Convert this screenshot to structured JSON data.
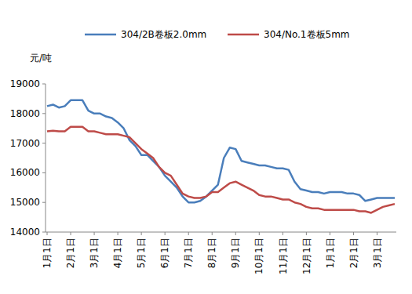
{
  "chart_data": {
    "type": "line",
    "y_label": "元/吨",
    "categories": [
      "1月1日",
      null,
      null,
      null,
      "2月1日",
      null,
      null,
      null,
      "3月1日",
      null,
      null,
      null,
      "4月1日",
      null,
      null,
      null,
      "5月1日",
      null,
      null,
      null,
      "6月1日",
      null,
      null,
      null,
      "7月1日",
      null,
      null,
      null,
      "8月1日",
      null,
      null,
      null,
      "9月1日",
      null,
      null,
      null,
      "10月1日",
      null,
      null,
      null,
      "11月1日",
      null,
      null,
      null,
      "12月1日",
      null,
      null,
      null,
      "1月1日",
      null,
      null,
      null,
      "2月1日",
      null,
      null,
      null,
      "3月1日",
      null,
      null,
      null
    ],
    "series": [
      {
        "name": "304/2B卷板2.0mm",
        "color": "#4a7ebb",
        "values": [
          18250,
          18300,
          18200,
          18250,
          18450,
          18450,
          18450,
          18100,
          18000,
          18000,
          17900,
          17850,
          17700,
          17500,
          17100,
          16900,
          16600,
          16600,
          16400,
          16200,
          15900,
          15700,
          15500,
          15200,
          15000,
          15000,
          15050,
          15200,
          15400,
          15600,
          16500,
          16850,
          16800,
          16400,
          16350,
          16300,
          16250,
          16250,
          16200,
          16150,
          16150,
          16100,
          15700,
          15450,
          15400,
          15350,
          15350,
          15300,
          15350,
          15350,
          15350,
          15300,
          15300,
          15250,
          15050,
          15100,
          15150,
          15150,
          15150,
          15150
        ]
      },
      {
        "name": "304/No.1卷板5mm",
        "color": "#be4b48",
        "values": [
          17400,
          17420,
          17400,
          17400,
          17550,
          17550,
          17550,
          17400,
          17400,
          17350,
          17300,
          17300,
          17300,
          17250,
          17200,
          17000,
          16800,
          16650,
          16500,
          16200,
          16000,
          15900,
          15600,
          15300,
          15200,
          15150,
          15150,
          15200,
          15350,
          15350,
          15500,
          15650,
          15700,
          15600,
          15500,
          15400,
          15250,
          15200,
          15200,
          15150,
          15100,
          15100,
          15000,
          14950,
          14850,
          14800,
          14800,
          14750,
          14750,
          14750,
          14750,
          14750,
          14750,
          14700,
          14700,
          14650,
          14750,
          14850,
          14900,
          14950
        ]
      }
    ],
    "ylim": [
      14000,
      19000
    ],
    "yticks": [
      14000,
      15000,
      16000,
      17000,
      18000,
      19000
    ],
    "grid": false,
    "legend": "top"
  }
}
